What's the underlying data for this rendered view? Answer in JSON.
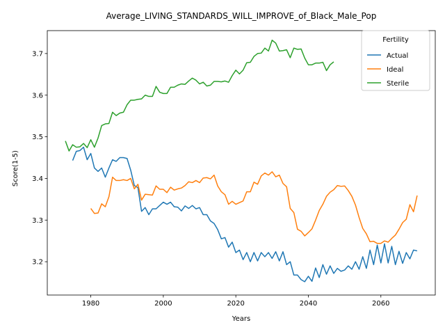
{
  "chart_data": {
    "type": "line",
    "title": "Average_LIVING_STANDARDS_WILL_IMPROVE_of_Black_Male_Pop",
    "xlabel": "Years",
    "ylabel": "Score(1-5)",
    "xlim": [
      1968,
      2075
    ],
    "ylim": [
      3.12,
      3.755
    ],
    "xticks": [
      1980,
      2000,
      2020,
      2040,
      2060
    ],
    "yticks": [
      3.2,
      3.3,
      3.4,
      3.5,
      3.6,
      3.7
    ],
    "grid": false,
    "legend": {
      "title": "Fertility",
      "position": "top-right"
    },
    "series": [
      {
        "name": "Actual",
        "color": "#1f77b4",
        "x_start": 1975,
        "values": [
          3.443,
          3.465,
          3.467,
          3.475,
          3.445,
          3.46,
          3.425,
          3.417,
          3.425,
          3.403,
          3.425,
          3.445,
          3.441,
          3.45,
          3.45,
          3.448,
          3.42,
          3.383,
          3.378,
          3.321,
          3.33,
          3.313,
          3.327,
          3.327,
          3.335,
          3.343,
          3.338,
          3.343,
          3.332,
          3.331,
          3.322,
          3.334,
          3.328,
          3.335,
          3.327,
          3.33,
          3.313,
          3.313,
          3.298,
          3.292,
          3.277,
          3.255,
          3.258,
          3.235,
          3.247,
          3.222,
          3.228,
          3.205,
          3.222,
          3.2,
          3.222,
          3.202,
          3.222,
          3.212,
          3.222,
          3.208,
          3.224,
          3.202,
          3.224,
          3.193,
          3.2,
          3.168,
          3.168,
          3.157,
          3.152,
          3.165,
          3.153,
          3.185,
          3.162,
          3.193,
          3.17,
          3.19,
          3.172,
          3.184,
          3.177,
          3.18,
          3.19,
          3.182,
          3.2,
          3.182,
          3.212,
          3.184,
          3.228,
          3.193,
          3.24,
          3.197,
          3.243,
          3.197,
          3.237,
          3.193,
          3.225,
          3.196,
          3.222,
          3.207,
          3.228,
          3.226
        ]
      },
      {
        "name": "Ideal",
        "color": "#ff7f0e",
        "x_start": 1980,
        "values": [
          3.328,
          3.316,
          3.317,
          3.339,
          3.332,
          3.356,
          3.403,
          3.395,
          3.395,
          3.397,
          3.395,
          3.4,
          3.375,
          3.386,
          3.348,
          3.362,
          3.361,
          3.36,
          3.382,
          3.374,
          3.374,
          3.366,
          3.379,
          3.372,
          3.375,
          3.377,
          3.383,
          3.392,
          3.39,
          3.395,
          3.39,
          3.401,
          3.402,
          3.399,
          3.408,
          3.382,
          3.368,
          3.361,
          3.338,
          3.345,
          3.338,
          3.342,
          3.346,
          3.368,
          3.368,
          3.391,
          3.386,
          3.406,
          3.413,
          3.408,
          3.416,
          3.404,
          3.408,
          3.388,
          3.38,
          3.328,
          3.318,
          3.278,
          3.273,
          3.262,
          3.27,
          3.279,
          3.3,
          3.323,
          3.338,
          3.357,
          3.367,
          3.373,
          3.383,
          3.381,
          3.382,
          3.371,
          3.357,
          3.336,
          3.306,
          3.28,
          3.267,
          3.248,
          3.249,
          3.244,
          3.244,
          3.25,
          3.247,
          3.256,
          3.264,
          3.278,
          3.294,
          3.302,
          3.337,
          3.32,
          3.359
        ]
      },
      {
        "name": "Sterile",
        "color": "#2ca02c",
        "x_start": 1973,
        "values": [
          3.49,
          3.466,
          3.481,
          3.475,
          3.476,
          3.484,
          3.474,
          3.493,
          3.475,
          3.497,
          3.527,
          3.531,
          3.532,
          3.559,
          3.551,
          3.557,
          3.559,
          3.577,
          3.588,
          3.588,
          3.59,
          3.591,
          3.6,
          3.597,
          3.597,
          3.621,
          3.607,
          3.604,
          3.604,
          3.619,
          3.619,
          3.624,
          3.627,
          3.626,
          3.634,
          3.641,
          3.636,
          3.627,
          3.631,
          3.622,
          3.624,
          3.633,
          3.633,
          3.632,
          3.634,
          3.631,
          3.647,
          3.66,
          3.651,
          3.66,
          3.678,
          3.679,
          3.693,
          3.7,
          3.701,
          3.713,
          3.706,
          3.732,
          3.725,
          3.706,
          3.707,
          3.709,
          3.69,
          3.713,
          3.71,
          3.711,
          3.689,
          3.673,
          3.673,
          3.677,
          3.677,
          3.679,
          3.659,
          3.673,
          3.68
        ]
      }
    ]
  }
}
